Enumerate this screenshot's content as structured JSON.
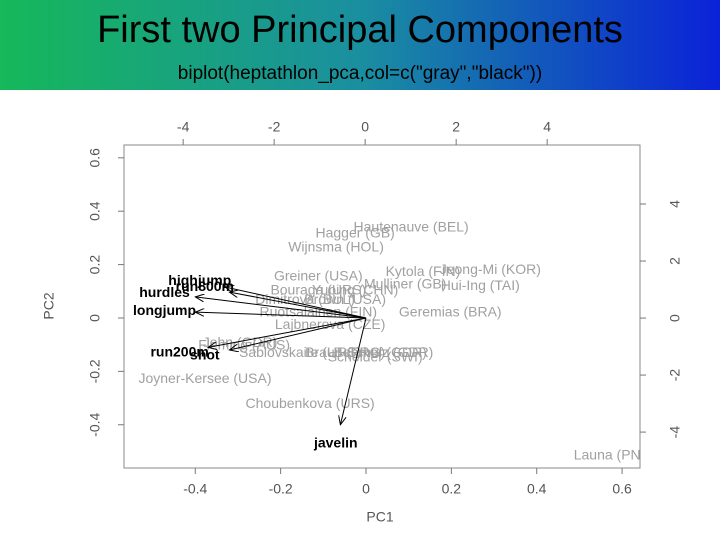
{
  "chart_data": {
    "type": "biplot",
    "title": "First two Principal Components",
    "subtitle": "biplot(heptathlon_pca,col=c(\"gray\",\"black\"))",
    "xlabel": "PC1",
    "ylabel": "PC2",
    "xlim": [
      -0.567,
      0.642
    ],
    "ylim": [
      -0.562,
      0.648
    ],
    "xticks": [
      -0.4,
      -0.2,
      0.0,
      0.2,
      0.4,
      0.6
    ],
    "yticks": [
      -0.4,
      -0.2,
      0.0,
      0.2,
      0.4,
      0.6
    ],
    "x2lim": [
      -5.3,
      6.04
    ],
    "y2lim": [
      -5.26,
      6.07
    ],
    "x2ticks": [
      -4,
      -2,
      0,
      2,
      4
    ],
    "y2ticks": [
      -4,
      -2,
      0,
      2,
      4
    ],
    "point_color": "#a0a0a0",
    "arrow_color": "#000000",
    "points": {
      "labels": [
        "Hautenauve (BEL)",
        "Hagger (GB)",
        "Wijnsma (HOL)",
        "Greiner (USA)",
        "Kytola (FIN)",
        "Jeong-Mi (KOR)",
        "Bouraga (URS)",
        "Yuping (CHN)",
        "Mulliner (GB)",
        "Hui-Ing (TAI)",
        "Dimitrova (BUL)",
        "Brown (USA)",
        "Ruotsalainen (FIN)",
        "Geremias (BRA)",
        "Lajbnerova (CZE)",
        "Fleming (AUS)",
        "Sablovskaite (URS)",
        "Braun (FRG)",
        "Behmer (GDR)",
        "Schulz (GDR)",
        "Scheider (SWI)",
        "John (GDR)",
        "Joyner-Kersee (USA)",
        "Choubenkova (URS)",
        "Launa (PNG)"
      ],
      "x": [
        1.01,
        -0.22,
        -0.64,
        -1.03,
        1.27,
        2.75,
        -1.03,
        -0.22,
        0.88,
        2.53,
        -1.32,
        -0.44,
        -1.03,
        1.87,
        -0.77,
        -2.66,
        -1.43,
        -0.44,
        0.33,
        0.55,
        0.22,
        -2.75,
        -3.52,
        -1.21,
        5.49
      ],
      "y": [
        3.16,
        2.95,
        2.46,
        1.44,
        1.61,
        1.68,
        0.95,
        0.95,
        1.16,
        1.12,
        0.63,
        0.63,
        0.18,
        0.18,
        -0.25,
        -0.98,
        -1.23,
        -1.23,
        -1.23,
        -1.23,
        -1.4,
        -0.88,
        -2.14,
        -3.02,
        -4.84
      ]
    },
    "loadings": {
      "labels": [
        "highjump",
        "run800m",
        "hurdles",
        "longjump",
        "shot",
        "run200m",
        "javelin"
      ],
      "x": [
        -0.33,
        -0.32,
        -0.4,
        -0.4,
        -0.32,
        -0.37,
        -0.06
      ],
      "y": [
        0.116,
        0.097,
        0.079,
        0.022,
        -0.12,
        -0.11,
        -0.4
      ]
    }
  }
}
